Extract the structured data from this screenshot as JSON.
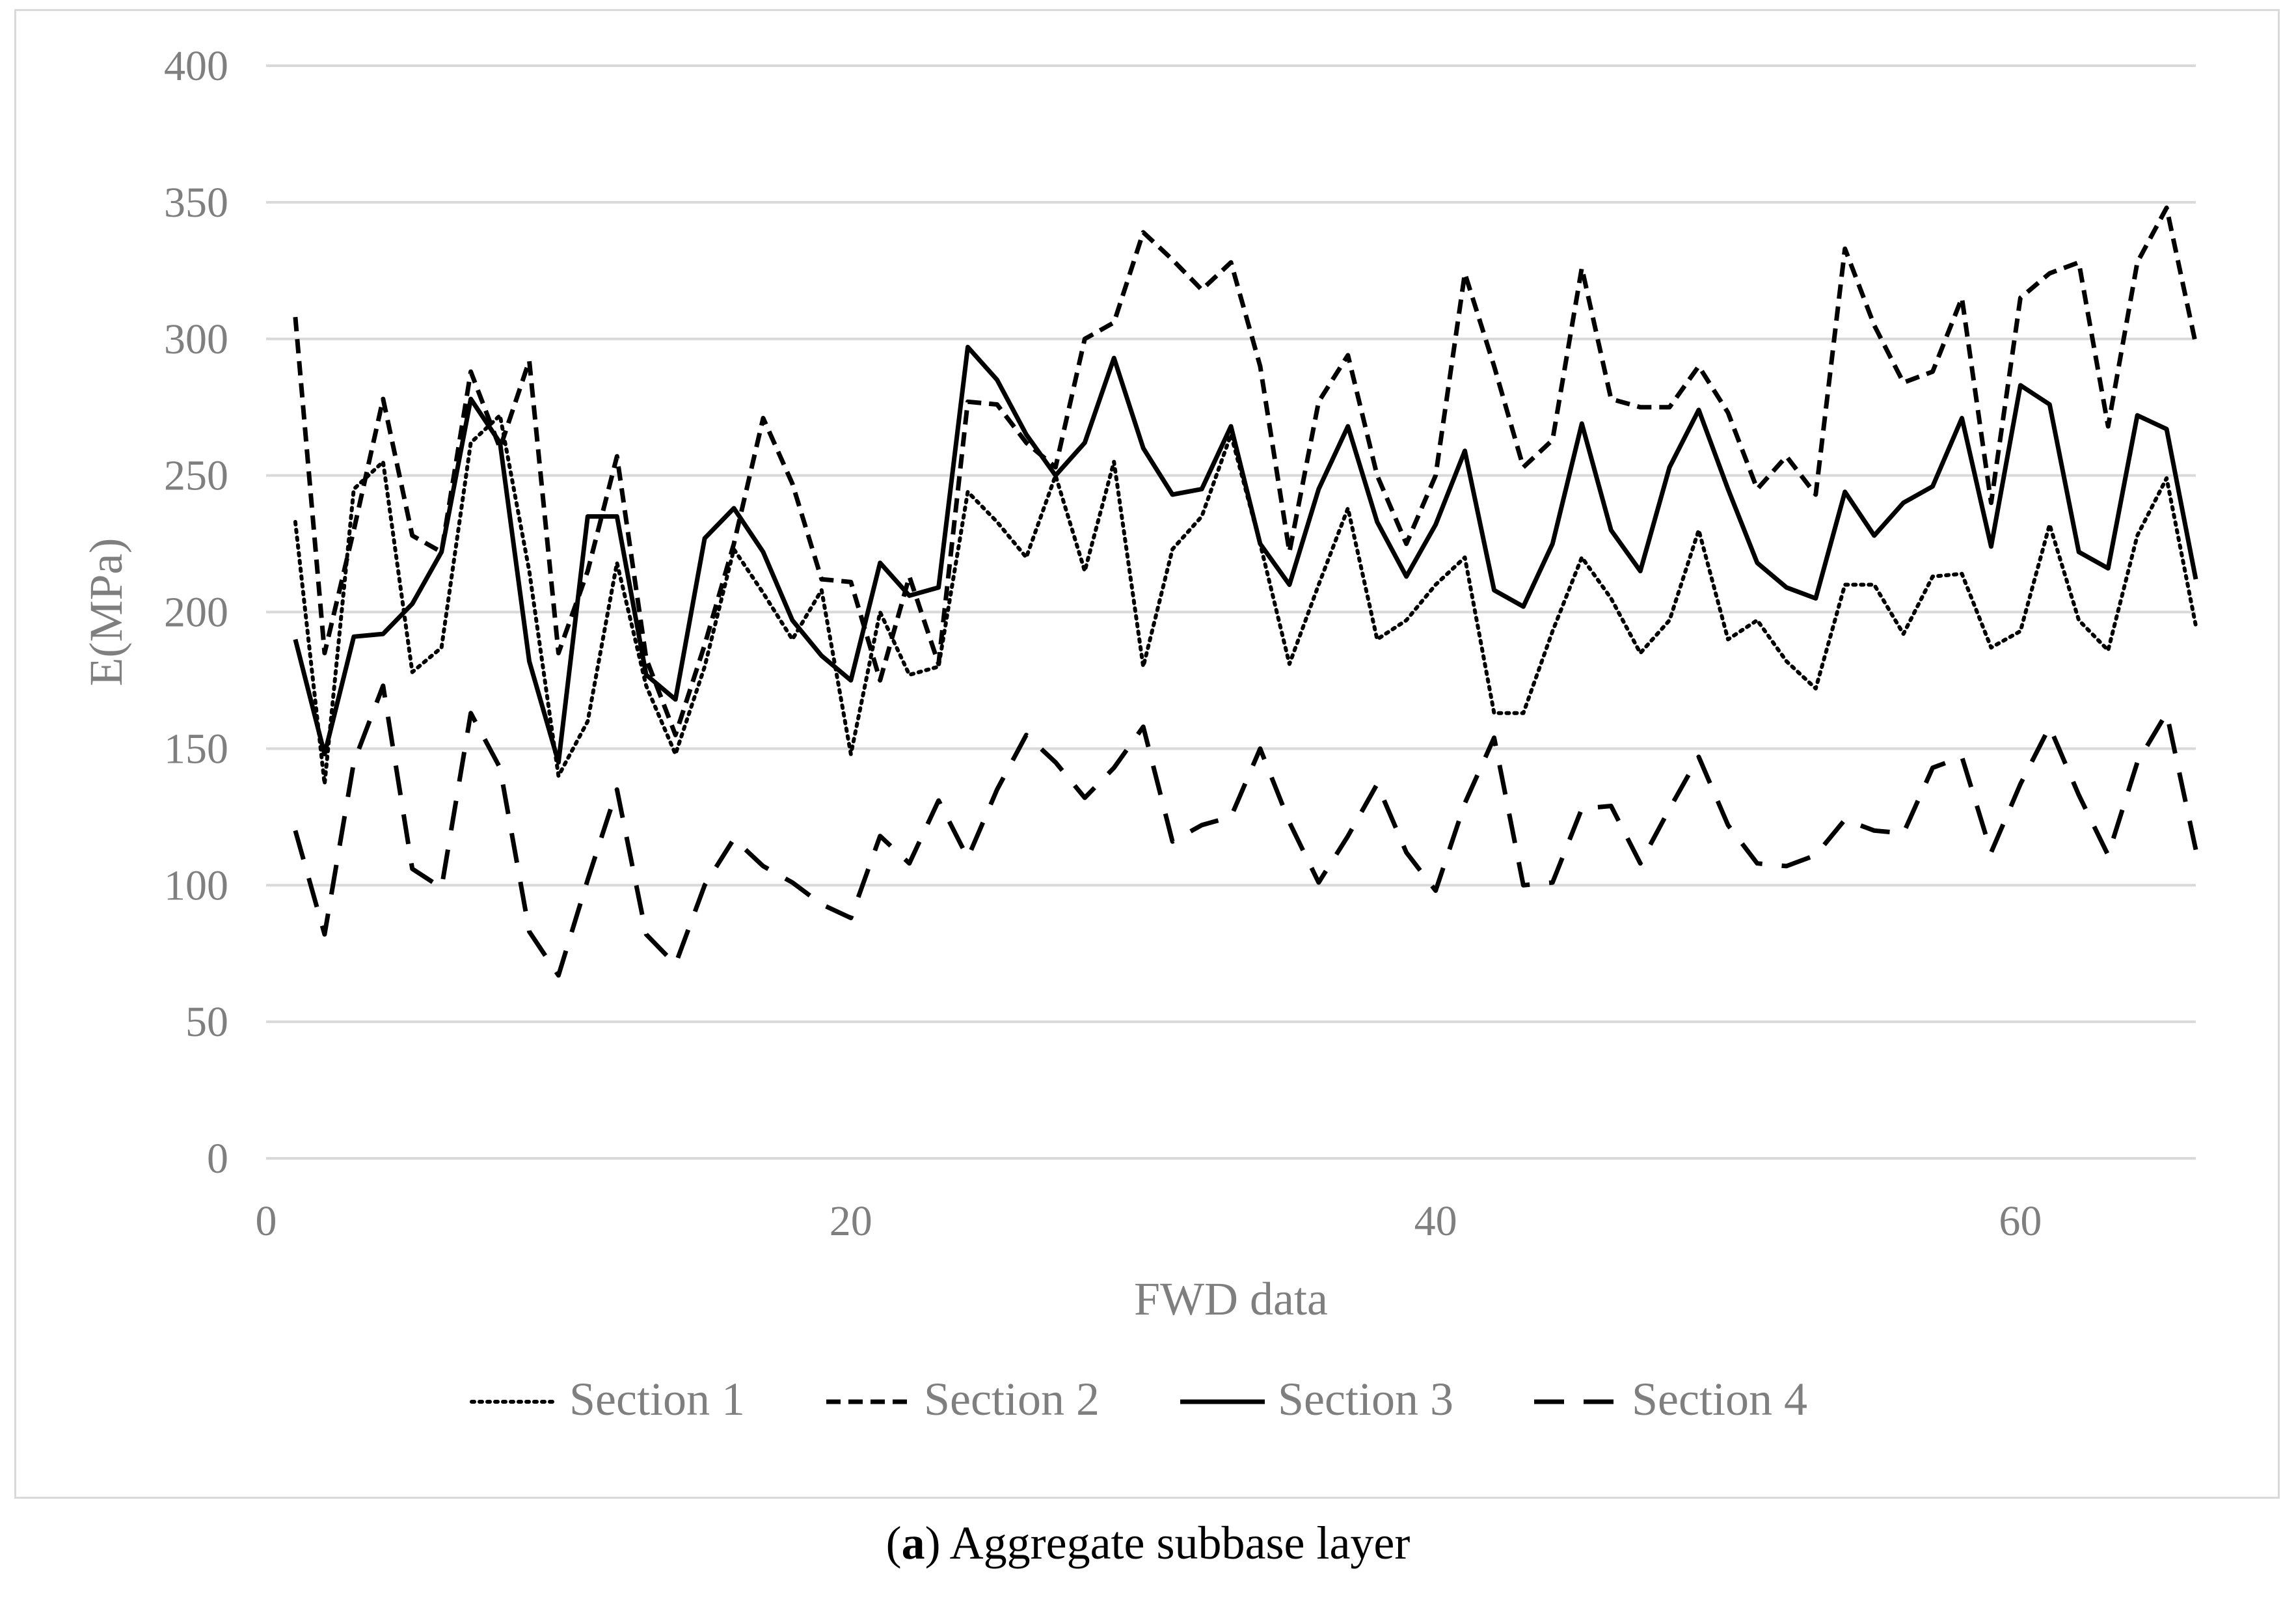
{
  "chart_data": {
    "type": "line",
    "title": "",
    "xlabel": "FWD data",
    "ylabel": "E(MPa)",
    "xlim": [
      0,
      66
    ],
    "ylim": [
      0,
      400
    ],
    "x_ticks": [
      0,
      20,
      40,
      60
    ],
    "y_ticks": [
      0,
      50,
      100,
      150,
      200,
      250,
      300,
      350,
      400
    ],
    "grid": "horizontal",
    "legend_position": "bottom",
    "x": [
      1,
      2,
      3,
      4,
      5,
      6,
      7,
      8,
      9,
      10,
      11,
      12,
      13,
      14,
      15,
      16,
      17,
      18,
      19,
      20,
      21,
      22,
      23,
      24,
      25,
      26,
      27,
      28,
      29,
      30,
      31,
      32,
      33,
      34,
      35,
      36,
      37,
      38,
      39,
      40,
      41,
      42,
      43,
      44,
      45,
      46,
      47,
      48,
      49,
      50,
      51,
      52,
      53,
      54,
      55,
      56,
      57,
      58,
      59,
      60,
      61,
      62,
      63,
      64,
      65,
      66
    ],
    "series": [
      {
        "name": "Section 1",
        "style": "dotted",
        "values": [
          233,
          137,
          245,
          255,
          178,
          187,
          262,
          272,
          215,
          140,
          160,
          218,
          173,
          148,
          180,
          223,
          207,
          190,
          208,
          148,
          200,
          177,
          180,
          244,
          233,
          220,
          250,
          215,
          255,
          180,
          223,
          235,
          265,
          225,
          181,
          210,
          238,
          190,
          197,
          210,
          220,
          163,
          163,
          193,
          220,
          205,
          185,
          197,
          230,
          190,
          197,
          182,
          172,
          210,
          210,
          192,
          213,
          214,
          187,
          193,
          232,
          197,
          186,
          228,
          249,
          195
        ]
      },
      {
        "name": "Section 2",
        "style": "short-dash",
        "values": [
          308,
          185,
          230,
          278,
          228,
          222,
          288,
          260,
          292,
          185,
          215,
          257,
          183,
          155,
          188,
          225,
          271,
          247,
          212,
          211,
          175,
          213,
          181,
          277,
          276,
          262,
          253,
          300,
          306,
          339,
          329,
          318,
          328,
          290,
          222,
          277,
          294,
          250,
          225,
          250,
          324,
          290,
          253,
          263,
          326,
          278,
          275,
          275,
          290,
          273,
          245,
          257,
          243,
          333,
          305,
          284,
          288,
          315,
          240,
          315,
          324,
          328,
          268,
          328,
          348,
          298
        ]
      },
      {
        "name": "Section 3",
        "style": "solid",
        "values": [
          190,
          148,
          191,
          192,
          203,
          222,
          278,
          262,
          182,
          145,
          235,
          235,
          177,
          168,
          227,
          238,
          222,
          197,
          184,
          175,
          218,
          206,
          209,
          297,
          285,
          265,
          250,
          262,
          293,
          260,
          243,
          245,
          268,
          225,
          210,
          245,
          268,
          233,
          213,
          232,
          259,
          208,
          202,
          225,
          269,
          230,
          215,
          253,
          274,
          245,
          218,
          209,
          205,
          244,
          228,
          240,
          246,
          271,
          224,
          283,
          276,
          222,
          216,
          272,
          267,
          212
        ]
      },
      {
        "name": "Section 4",
        "style": "long-dash",
        "values": [
          120,
          82,
          145,
          173,
          106,
          99,
          163,
          143,
          83,
          67,
          102,
          135,
          82,
          71,
          100,
          117,
          107,
          101,
          93,
          88,
          118,
          108,
          131,
          110,
          135,
          155,
          145,
          132,
          143,
          158,
          116,
          122,
          125,
          150,
          123,
          101,
          118,
          137,
          112,
          98,
          130,
          154,
          100,
          101,
          128,
          129,
          108,
          128,
          147,
          122,
          108,
          107,
          111,
          124,
          120,
          119,
          143,
          147,
          112,
          137,
          158,
          133,
          111,
          145,
          163,
          113
        ]
      }
    ]
  },
  "caption": {
    "label": "a",
    "text": "Aggregate subbase layer"
  },
  "colors": {
    "series": "#000000",
    "text": "#7f7f7f",
    "grid": "#d9d9d9"
  }
}
